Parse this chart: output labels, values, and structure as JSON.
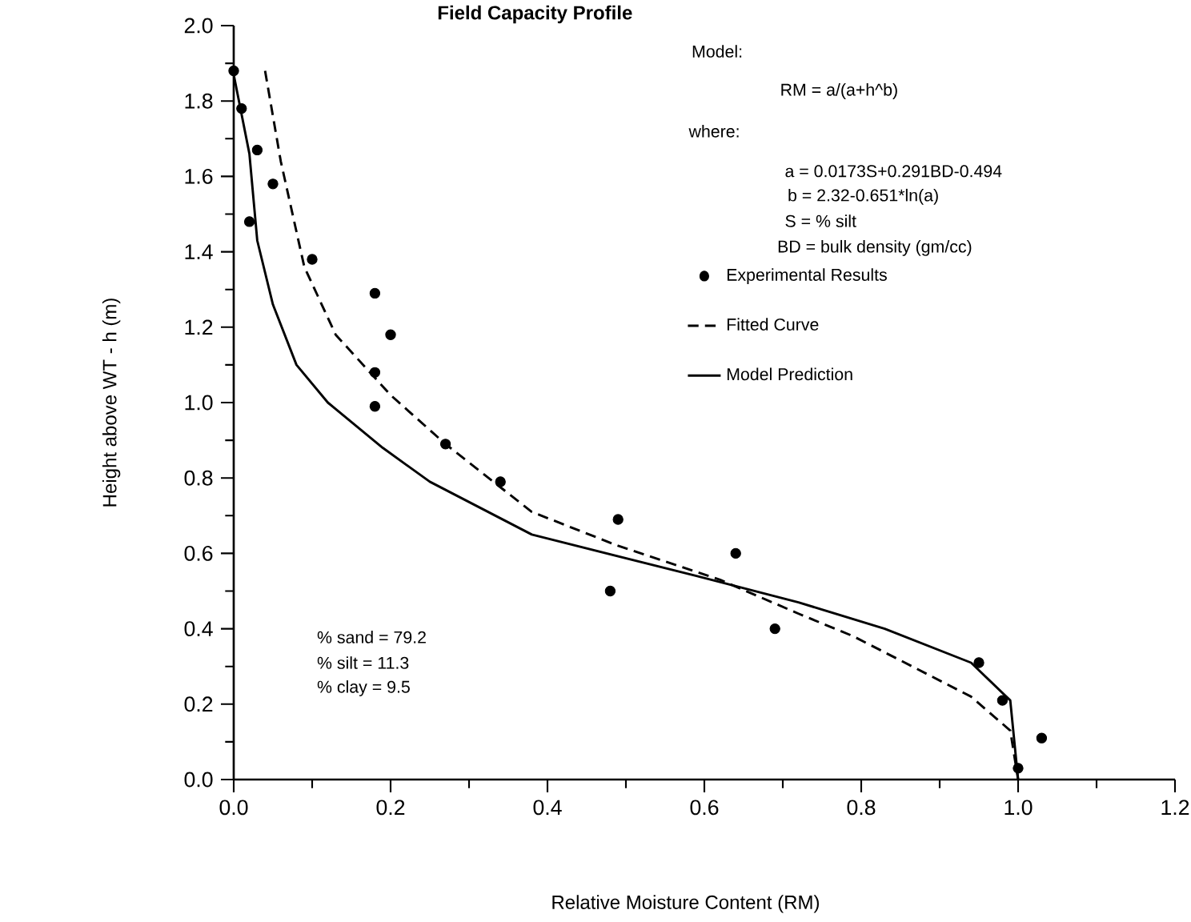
{
  "chart_data": {
    "type": "line",
    "title": "Field Capacity Profile",
    "xlabel": "Relative Moisture Content (RM)",
    "ylabel": "Height above WT - h (m)",
    "xlim": [
      0,
      1.2
    ],
    "ylim": [
      0,
      2.0
    ],
    "xticks": [
      {
        "value": 0,
        "label": "0.0"
      },
      {
        "value": 0.2,
        "label": "0.2"
      },
      {
        "value": 0.4,
        "label": "0.4"
      },
      {
        "value": 0.6,
        "label": "0.6"
      },
      {
        "value": 0.8,
        "label": "0.8"
      },
      {
        "value": 1.0,
        "label": "1.0"
      },
      {
        "value": 1.2,
        "label": "1.2"
      }
    ],
    "yticks": [
      {
        "value": 0,
        "label": "0.0"
      },
      {
        "value": 0.2,
        "label": "0.2"
      },
      {
        "value": 0.4,
        "label": "0.4"
      },
      {
        "value": 0.6,
        "label": "0.6"
      },
      {
        "value": 0.8,
        "label": "0.8"
      },
      {
        "value": 1.0,
        "label": "1.0"
      },
      {
        "value": 1.2,
        "label": "1.2"
      },
      {
        "value": 1.4,
        "label": "1.4"
      },
      {
        "value": 1.6,
        "label": "1.6"
      },
      {
        "value": 1.8,
        "label": "1.8"
      },
      {
        "value": 2.0,
        "label": "2.0"
      }
    ],
    "legend": "top",
    "series": [
      {
        "name": "Experimental Results",
        "type": "scatter",
        "marker": "circle",
        "color": "#000000",
        "x": [
          0.0,
          0.01,
          0.03,
          0.02,
          0.05,
          0.1,
          0.18,
          0.2,
          0.18,
          0.18,
          0.27,
          0.34,
          0.49,
          0.48,
          0.64,
          0.69,
          0.95,
          0.98,
          1.03,
          1.0
        ],
        "values": [
          1.88,
          1.78,
          1.67,
          1.48,
          1.58,
          1.38,
          1.29,
          1.18,
          1.08,
          0.99,
          0.89,
          0.79,
          0.69,
          0.5,
          0.6,
          0.4,
          0.31,
          0.21,
          0.11,
          0.03
        ]
      },
      {
        "name": "Fitted Curve",
        "line_style": "dashed",
        "color": "#000000",
        "x": [
          0.04,
          0.06,
          0.09,
          0.13,
          0.2,
          0.27,
          0.38,
          0.49,
          0.62,
          0.72,
          0.79,
          0.94,
          0.99,
          1.0
        ],
        "values": [
          1.88,
          1.64,
          1.36,
          1.18,
          1.02,
          0.89,
          0.71,
          0.62,
          0.53,
          0.44,
          0.38,
          0.22,
          0.13,
          0.0
        ]
      },
      {
        "name": "Model Prediction",
        "line_style": "solid",
        "color": "#000000",
        "x": [
          0.0,
          0.02,
          0.03,
          0.05,
          0.08,
          0.12,
          0.19,
          0.25,
          0.38,
          0.59,
          0.72,
          0.83,
          0.94,
          0.99,
          1.0
        ],
        "values": [
          1.87,
          1.66,
          1.43,
          1.26,
          1.1,
          1.0,
          0.88,
          0.79,
          0.65,
          0.54,
          0.47,
          0.4,
          0.31,
          0.21,
          0.0
        ]
      }
    ],
    "annotations": [
      "Model:",
      "RM = a/(a+h^b)",
      "where:",
      "a = 0.0173S+0.291BD-0.494",
      "b = 2.32-0.651*ln(a)",
      "S = % silt",
      "BD = bulk density (gm/cc)",
      "% sand = 79.2",
      "% silt = 11.3",
      "% clay = 9.5"
    ]
  }
}
